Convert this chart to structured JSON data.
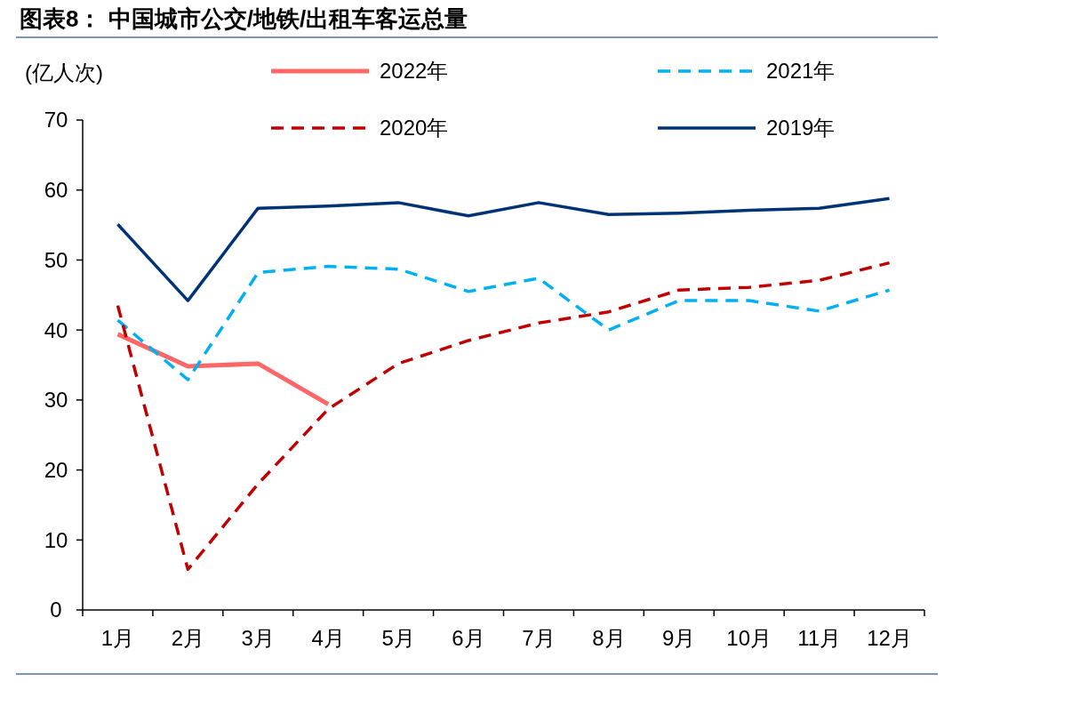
{
  "chart_data": {
    "type": "line",
    "title": "图表8：  中国城市公交/地铁/出租车客运总量",
    "ylabel": "(亿人次)",
    "categories": [
      "1月",
      "2月",
      "3月",
      "4月",
      "5月",
      "6月",
      "7月",
      "8月",
      "9月",
      "10月",
      "11月",
      "12月"
    ],
    "series": [
      {
        "name": "2022年",
        "color": "#ff6666",
        "line_style": "solid",
        "values": [
          39.4,
          34.8,
          35.2,
          29.4,
          null,
          null,
          null,
          null,
          null,
          null,
          null,
          null
        ]
      },
      {
        "name": "2021年",
        "color": "#00b0f0",
        "line_style": "dashed",
        "values": [
          41.4,
          32.9,
          48.2,
          49.1,
          48.7,
          45.5,
          47.4,
          40.0,
          44.2,
          44.2,
          42.7,
          45.7
        ]
      },
      {
        "name": "2020年",
        "color": "#c00000",
        "line_style": "dashed",
        "values": [
          43.5,
          5.8,
          18,
          28.7,
          35.2,
          38.5,
          41.0,
          42.6,
          45.7,
          46.1,
          47.1,
          49.6
        ]
      },
      {
        "name": "2019年",
        "color": "#003375",
        "line_style": "solid",
        "values": [
          55.1,
          44.2,
          57.4,
          57.7,
          58.2,
          56.3,
          58.2,
          56.5,
          56.7,
          57.1,
          57.4,
          58.8
        ]
      }
    ],
    "ylim": [
      0,
      70
    ],
    "yticks": [
      0,
      10,
      20,
      30,
      40,
      50,
      60,
      70
    ],
    "grid": false,
    "legend": "top"
  }
}
